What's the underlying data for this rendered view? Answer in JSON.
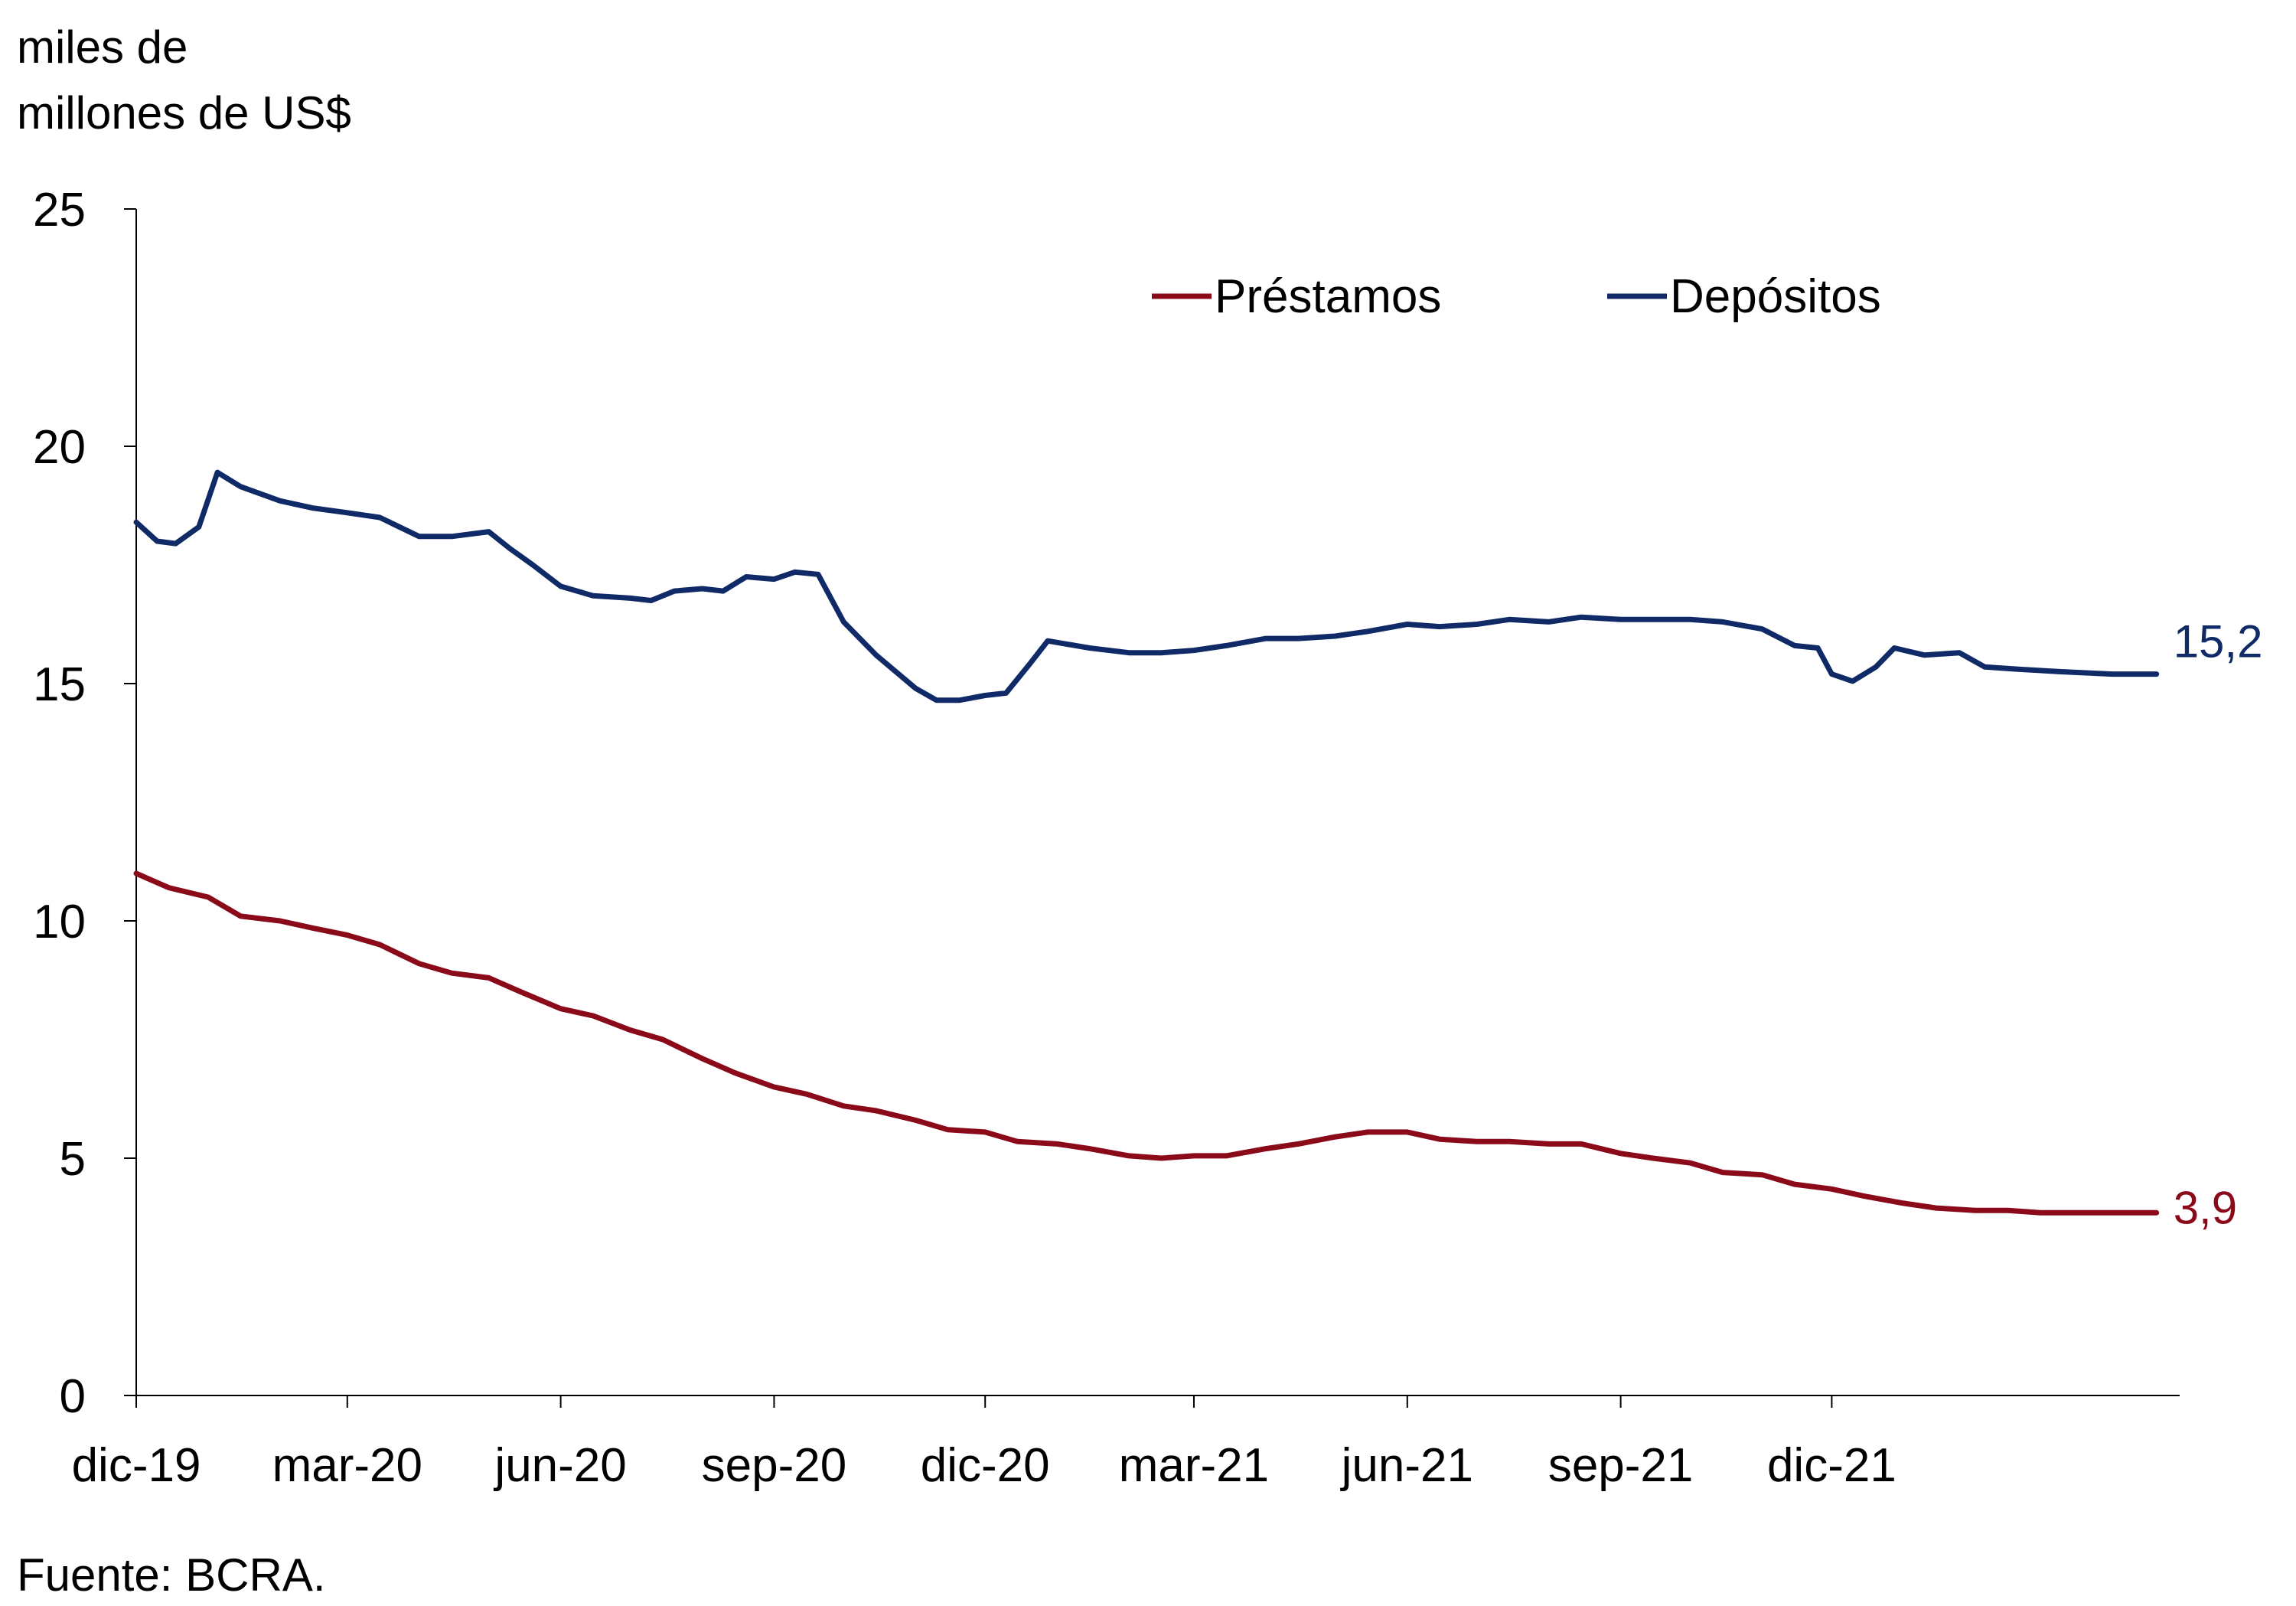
{
  "chart_data": {
    "type": "line",
    "ylabel": [
      "miles de",
      "millones de US$"
    ],
    "ylim": [
      0,
      25
    ],
    "yticks": [
      "0",
      "5",
      "10",
      "15",
      "20",
      "25"
    ],
    "x_range": [
      "2019-12-01",
      "2022-04-30"
    ],
    "xticks": [
      {
        "label": "dic-19",
        "date": "2019-12-01"
      },
      {
        "label": "mar-20",
        "date": "2020-03-01"
      },
      {
        "label": "jun-20",
        "date": "2020-06-01"
      },
      {
        "label": "sep-20",
        "date": "2020-09-01"
      },
      {
        "label": "dic-20",
        "date": "2020-12-01"
      },
      {
        "label": "mar-21",
        "date": "2021-03-01"
      },
      {
        "label": "jun-21",
        "date": "2021-06-01"
      },
      {
        "label": "sep-21",
        "date": "2021-09-01"
      },
      {
        "label": "dic-21",
        "date": "2021-12-01"
      }
    ],
    "grid": false,
    "legend_position": "top-right",
    "series": [
      {
        "name": "Préstamos",
        "color": "#8B0A1A",
        "end_label": "3,9",
        "points": [
          [
            "2019-12-01",
            11.0
          ],
          [
            "2019-12-15",
            10.7
          ],
          [
            "2020-01-01",
            10.5
          ],
          [
            "2020-01-15",
            10.1
          ],
          [
            "2020-02-01",
            10.0
          ],
          [
            "2020-02-15",
            9.85
          ],
          [
            "2020-03-01",
            9.7
          ],
          [
            "2020-03-15",
            9.5
          ],
          [
            "2020-04-01",
            9.1
          ],
          [
            "2020-04-15",
            8.9
          ],
          [
            "2020-05-01",
            8.8
          ],
          [
            "2020-05-15",
            8.5
          ],
          [
            "2020-06-01",
            8.15
          ],
          [
            "2020-06-15",
            8.0
          ],
          [
            "2020-07-01",
            7.7
          ],
          [
            "2020-07-15",
            7.5
          ],
          [
            "2020-08-01",
            7.1
          ],
          [
            "2020-08-15",
            6.8
          ],
          [
            "2020-09-01",
            6.5
          ],
          [
            "2020-09-15",
            6.35
          ],
          [
            "2020-10-01",
            6.1
          ],
          [
            "2020-10-15",
            6.0
          ],
          [
            "2020-11-01",
            5.8
          ],
          [
            "2020-11-15",
            5.6
          ],
          [
            "2020-12-01",
            5.55
          ],
          [
            "2020-12-15",
            5.35
          ],
          [
            "2021-01-01",
            5.3
          ],
          [
            "2021-01-15",
            5.2
          ],
          [
            "2021-02-01",
            5.05
          ],
          [
            "2021-02-15",
            5.0
          ],
          [
            "2021-03-01",
            5.05
          ],
          [
            "2021-03-15",
            5.05
          ],
          [
            "2021-04-01",
            5.2
          ],
          [
            "2021-04-15",
            5.3
          ],
          [
            "2021-05-01",
            5.45
          ],
          [
            "2021-05-15",
            5.55
          ],
          [
            "2021-06-01",
            5.55
          ],
          [
            "2021-06-15",
            5.4
          ],
          [
            "2021-07-01",
            5.35
          ],
          [
            "2021-07-15",
            5.35
          ],
          [
            "2021-08-01",
            5.3
          ],
          [
            "2021-08-15",
            5.3
          ],
          [
            "2021-09-01",
            5.1
          ],
          [
            "2021-09-15",
            5.0
          ],
          [
            "2021-10-01",
            4.9
          ],
          [
            "2021-10-15",
            4.7
          ],
          [
            "2021-11-01",
            4.65
          ],
          [
            "2021-11-15",
            4.45
          ],
          [
            "2021-12-01",
            4.35
          ],
          [
            "2021-12-15",
            4.2
          ],
          [
            "2022-01-01",
            4.05
          ],
          [
            "2022-01-15",
            3.95
          ],
          [
            "2022-02-01",
            3.9
          ],
          [
            "2022-02-15",
            3.9
          ],
          [
            "2022-03-01",
            3.85
          ],
          [
            "2022-03-15",
            3.85
          ],
          [
            "2022-04-01",
            3.85
          ],
          [
            "2022-04-20",
            3.85
          ]
        ]
      },
      {
        "name": "Depósitos",
        "color": "#0F2A66",
        "end_label": "15,2",
        "points": [
          [
            "2019-12-01",
            18.4
          ],
          [
            "2019-12-10",
            18.0
          ],
          [
            "2019-12-18",
            17.95
          ],
          [
            "2019-12-28",
            18.3
          ],
          [
            "2020-01-05",
            19.45
          ],
          [
            "2020-01-15",
            19.15
          ],
          [
            "2020-02-01",
            18.85
          ],
          [
            "2020-02-15",
            18.7
          ],
          [
            "2020-03-01",
            18.6
          ],
          [
            "2020-03-15",
            18.5
          ],
          [
            "2020-04-01",
            18.1
          ],
          [
            "2020-04-15",
            18.1
          ],
          [
            "2020-05-01",
            18.2
          ],
          [
            "2020-05-10",
            17.85
          ],
          [
            "2020-05-20",
            17.5
          ],
          [
            "2020-06-01",
            17.05
          ],
          [
            "2020-06-15",
            16.85
          ],
          [
            "2020-07-01",
            16.8
          ],
          [
            "2020-07-10",
            16.75
          ],
          [
            "2020-07-20",
            16.95
          ],
          [
            "2020-08-01",
            17.0
          ],
          [
            "2020-08-10",
            16.95
          ],
          [
            "2020-08-20",
            17.25
          ],
          [
            "2020-09-01",
            17.2
          ],
          [
            "2020-09-10",
            17.35
          ],
          [
            "2020-09-20",
            17.3
          ],
          [
            "2020-10-01",
            16.3
          ],
          [
            "2020-10-15",
            15.6
          ],
          [
            "2020-11-01",
            14.9
          ],
          [
            "2020-11-10",
            14.65
          ],
          [
            "2020-11-20",
            14.65
          ],
          [
            "2020-12-01",
            14.75
          ],
          [
            "2020-12-10",
            14.8
          ],
          [
            "2020-12-20",
            15.4
          ],
          [
            "2020-12-28",
            15.9
          ],
          [
            "2021-01-15",
            15.75
          ],
          [
            "2021-02-01",
            15.65
          ],
          [
            "2021-02-15",
            15.65
          ],
          [
            "2021-03-01",
            15.7
          ],
          [
            "2021-03-15",
            15.8
          ],
          [
            "2021-04-01",
            15.95
          ],
          [
            "2021-04-15",
            15.95
          ],
          [
            "2021-05-01",
            16.0
          ],
          [
            "2021-05-15",
            16.1
          ],
          [
            "2021-06-01",
            16.25
          ],
          [
            "2021-06-15",
            16.2
          ],
          [
            "2021-07-01",
            16.25
          ],
          [
            "2021-07-15",
            16.35
          ],
          [
            "2021-08-01",
            16.3
          ],
          [
            "2021-08-15",
            16.4
          ],
          [
            "2021-09-01",
            16.35
          ],
          [
            "2021-09-15",
            16.35
          ],
          [
            "2021-10-01",
            16.35
          ],
          [
            "2021-10-15",
            16.3
          ],
          [
            "2021-11-01",
            16.15
          ],
          [
            "2021-11-15",
            15.8
          ],
          [
            "2021-11-25",
            15.75
          ],
          [
            "2021-12-01",
            15.2
          ],
          [
            "2021-12-10",
            15.05
          ],
          [
            "2021-12-20",
            15.35
          ],
          [
            "2021-12-28",
            15.75
          ],
          [
            "2022-01-10",
            15.6
          ],
          [
            "2022-01-25",
            15.65
          ],
          [
            "2022-02-05",
            15.35
          ],
          [
            "2022-02-20",
            15.3
          ],
          [
            "2022-03-10",
            15.25
          ],
          [
            "2022-04-01",
            15.2
          ],
          [
            "2022-04-20",
            15.2
          ]
        ]
      }
    ]
  },
  "source": "Fuente: BCRA."
}
